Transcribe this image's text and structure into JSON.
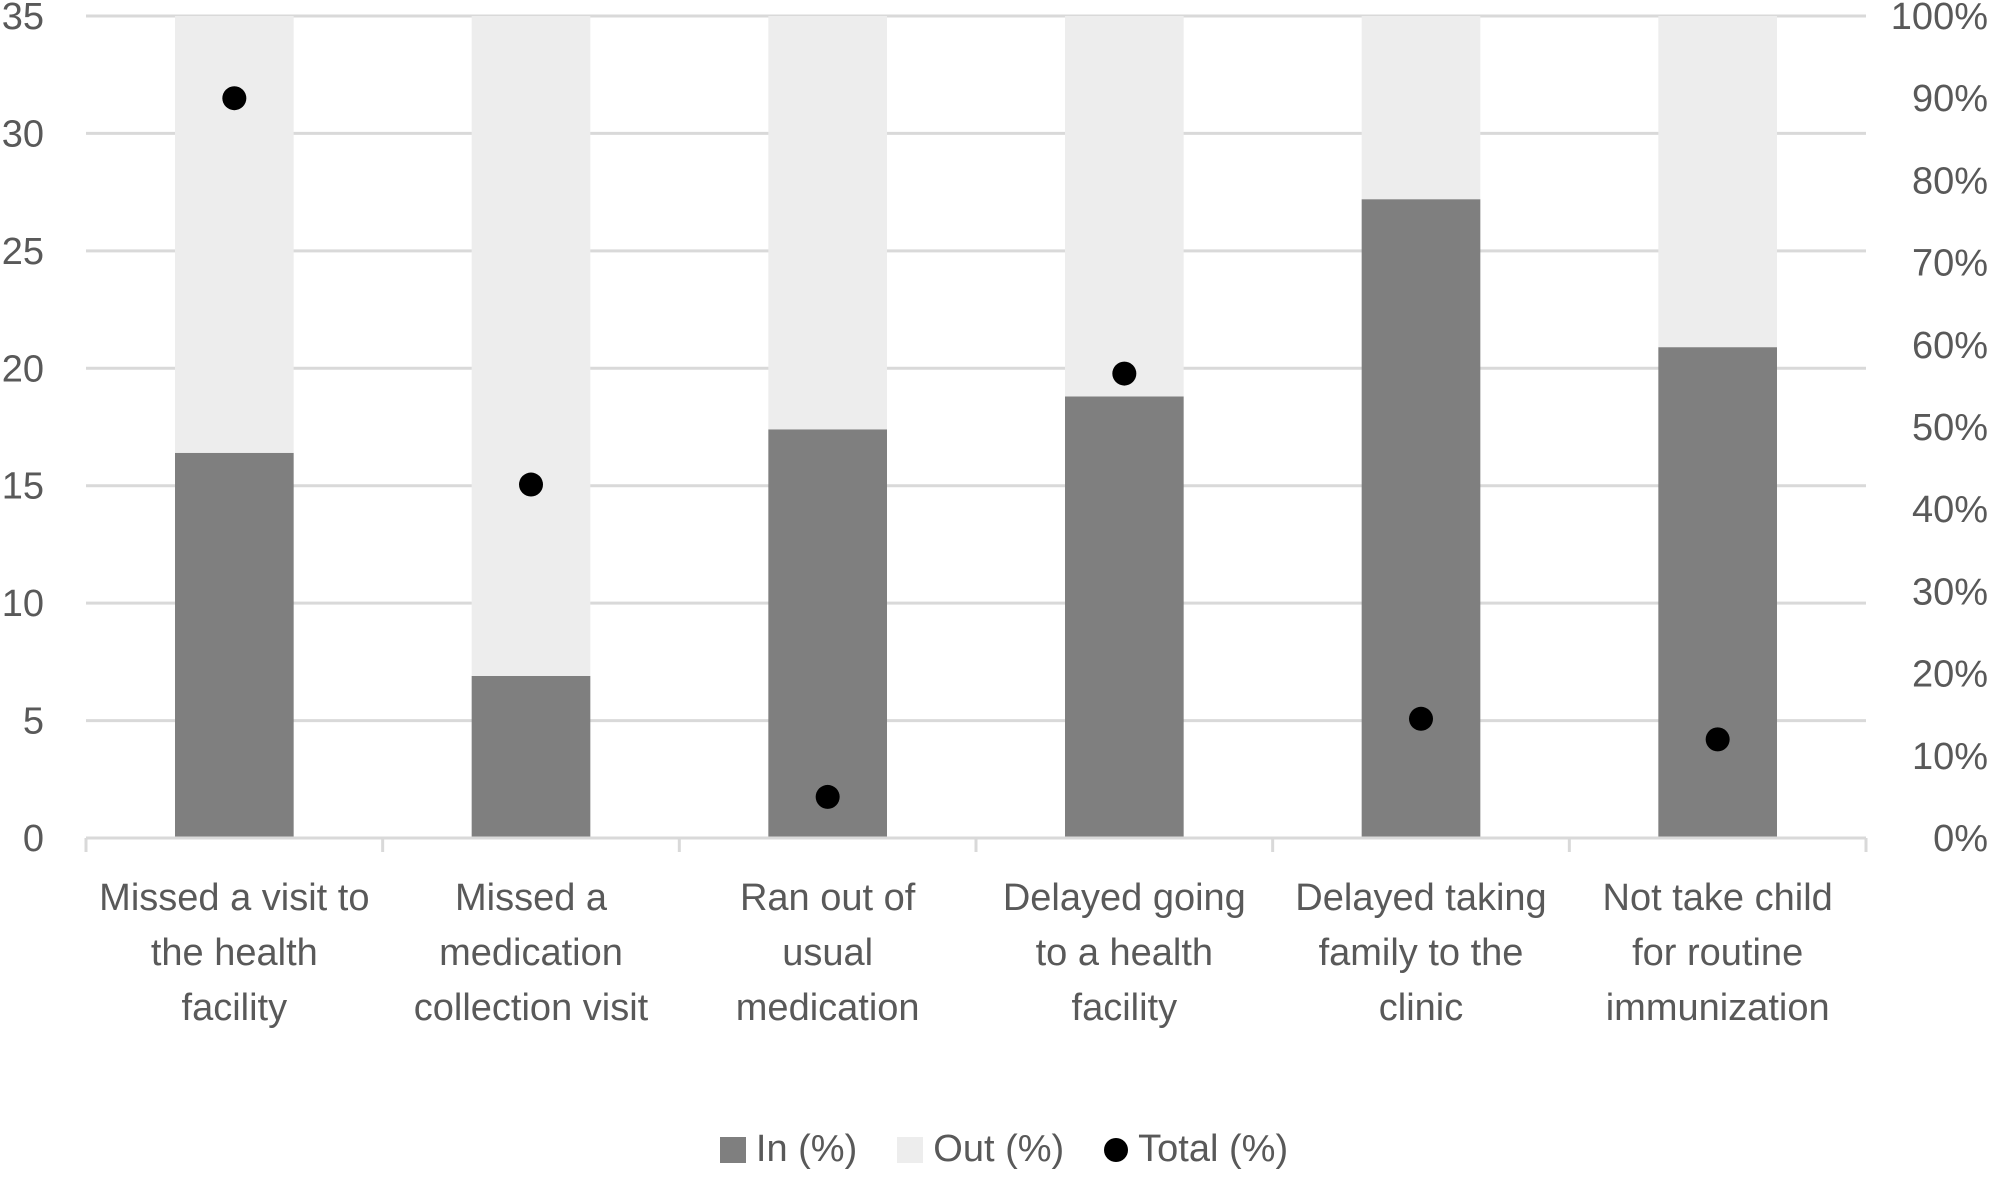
{
  "chart_data": {
    "type": "bar",
    "stacked": true,
    "categories": [
      [
        "Missed a visit to",
        "the health",
        "facility"
      ],
      [
        "Missed a",
        "medication",
        "collection visit"
      ],
      [
        "Ran out of",
        "usual",
        "medication"
      ],
      [
        "Delayed going",
        "to a health",
        "facility"
      ],
      [
        "Delayed taking",
        "family to the",
        "clinic"
      ],
      [
        "Not take child",
        "for routine",
        "immunization"
      ]
    ],
    "series": [
      {
        "name": "In (%)",
        "type": "bar",
        "axis": "left",
        "color": "#7f7f7f",
        "values": [
          16.4,
          6.9,
          17.4,
          18.8,
          27.2,
          20.9
        ]
      },
      {
        "name": "Out (%)",
        "type": "bar",
        "axis": "left",
        "color": "#ededed",
        "values": [
          18.6,
          28.1,
          17.6,
          16.2,
          7.8,
          14.1
        ]
      },
      {
        "name": "Total (%)",
        "type": "scatter",
        "axis": "right",
        "color": "#000000",
        "values": [
          90,
          43,
          5,
          56.5,
          14.5,
          12
        ]
      }
    ],
    "y_left": {
      "min": 0,
      "max": 35,
      "step": 5,
      "ticks": [
        "0",
        "5",
        "10",
        "15",
        "20",
        "25",
        "30",
        "35"
      ]
    },
    "y_right": {
      "min": 0,
      "max": 100,
      "step": 10,
      "ticks": [
        "0%",
        "10%",
        "20%",
        "30%",
        "40%",
        "50%",
        "60%",
        "70%",
        "80%",
        "90%",
        "100%"
      ]
    },
    "title": "",
    "xlabel": "",
    "ylabel": "",
    "grid": true,
    "legend_position": "bottom"
  }
}
